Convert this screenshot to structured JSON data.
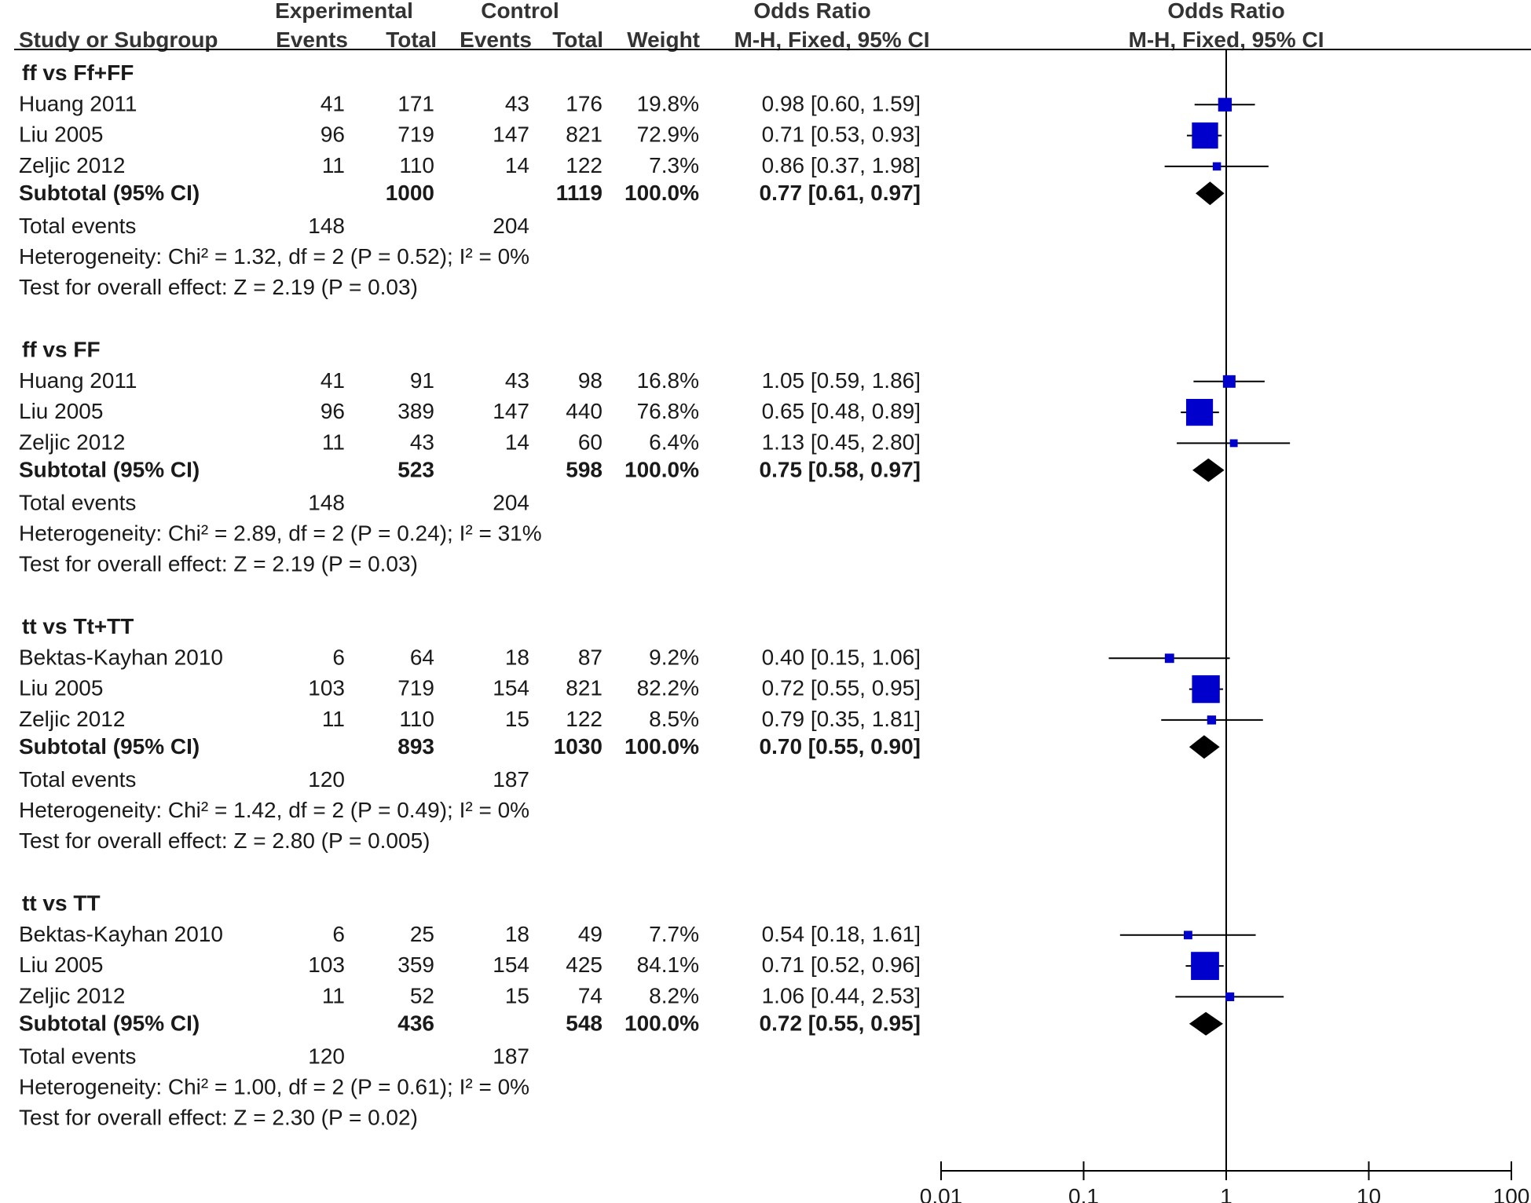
{
  "header": {
    "group_exp": "Experimental",
    "group_ctrl": "Control",
    "or_left_title": "Odds Ratio",
    "or_right_title": "Odds Ratio",
    "col_study": "Study or Subgroup",
    "col_exp_events": "Events",
    "col_exp_total": "Total",
    "col_ctrl_events": "Events",
    "col_ctrl_total": "Total",
    "col_weight": "Weight",
    "col_method_left": "M-H, Fixed, 95% CI",
    "col_method_right": "M-H, Fixed, 95% CI"
  },
  "subgroup_labels": {
    "subtotal": "Subtotal (95% CI)",
    "total_events": "Total events"
  },
  "chart_data": {
    "type": "forest",
    "x_scale": "log",
    "x_ticks": [
      0.01,
      0.1,
      1,
      10,
      100
    ],
    "x_tick_labels": [
      "0.01",
      "0.1",
      "1",
      "10",
      "100"
    ],
    "xlim": [
      0.01,
      100
    ],
    "reference_line": 1,
    "colors": {
      "study_box": "#0000cc",
      "summary_diamond": "#000000",
      "lines": "#000000"
    },
    "subgroups": [
      {
        "name": "ff vs Ff+FF",
        "studies": [
          {
            "study": "Huang 2011",
            "exp_events": "41",
            "exp_total": "171",
            "ctrl_events": "43",
            "ctrl_total": "176",
            "weight": "19.8%",
            "ci_text": "0.98 [0.60, 1.59]",
            "or": 0.98,
            "lo": 0.6,
            "hi": 1.59
          },
          {
            "study": "Liu 2005",
            "exp_events": "96",
            "exp_total": "719",
            "ctrl_events": "147",
            "ctrl_total": "821",
            "weight": "72.9%",
            "ci_text": "0.71 [0.53, 0.93]",
            "or": 0.71,
            "lo": 0.53,
            "hi": 0.93
          },
          {
            "study": "Zeljic 2012",
            "exp_events": "11",
            "exp_total": "110",
            "ctrl_events": "14",
            "ctrl_total": "122",
            "weight": "7.3%",
            "ci_text": "0.86 [0.37, 1.98]",
            "or": 0.86,
            "lo": 0.37,
            "hi": 1.98
          }
        ],
        "subtotal": {
          "exp_total": "1000",
          "ctrl_total": "1119",
          "weight": "100.0%",
          "ci_text": "0.77 [0.61, 0.97]",
          "or": 0.77,
          "lo": 0.61,
          "hi": 0.97
        },
        "total_events": {
          "exp": "148",
          "ctrl": "204"
        },
        "heterogeneity": "Heterogeneity: Chi² = 1.32, df = 2 (P = 0.52); I² = 0%",
        "overall": "Test for overall effect: Z = 2.19 (P = 0.03)"
      },
      {
        "name": "ff vs FF",
        "studies": [
          {
            "study": "Huang 2011",
            "exp_events": "41",
            "exp_total": "91",
            "ctrl_events": "43",
            "ctrl_total": "98",
            "weight": "16.8%",
            "ci_text": "1.05 [0.59, 1.86]",
            "or": 1.05,
            "lo": 0.59,
            "hi": 1.86
          },
          {
            "study": "Liu 2005",
            "exp_events": "96",
            "exp_total": "389",
            "ctrl_events": "147",
            "ctrl_total": "440",
            "weight": "76.8%",
            "ci_text": "0.65 [0.48, 0.89]",
            "or": 0.65,
            "lo": 0.48,
            "hi": 0.89
          },
          {
            "study": "Zeljic 2012",
            "exp_events": "11",
            "exp_total": "43",
            "ctrl_events": "14",
            "ctrl_total": "60",
            "weight": "6.4%",
            "ci_text": "1.13 [0.45, 2.80]",
            "or": 1.13,
            "lo": 0.45,
            "hi": 2.8
          }
        ],
        "subtotal": {
          "exp_total": "523",
          "ctrl_total": "598",
          "weight": "100.0%",
          "ci_text": "0.75 [0.58, 0.97]",
          "or": 0.75,
          "lo": 0.58,
          "hi": 0.97
        },
        "total_events": {
          "exp": "148",
          "ctrl": "204"
        },
        "heterogeneity": "Heterogeneity: Chi² = 2.89, df = 2 (P = 0.24); I² = 31%",
        "overall": "Test for overall effect: Z = 2.19 (P = 0.03)"
      },
      {
        "name": "tt vs Tt+TT",
        "studies": [
          {
            "study": "Bektas-Kayhan 2010",
            "exp_events": "6",
            "exp_total": "64",
            "ctrl_events": "18",
            "ctrl_total": "87",
            "weight": "9.2%",
            "ci_text": "0.40 [0.15, 1.06]",
            "or": 0.4,
            "lo": 0.15,
            "hi": 1.06
          },
          {
            "study": "Liu 2005",
            "exp_events": "103",
            "exp_total": "719",
            "ctrl_events": "154",
            "ctrl_total": "821",
            "weight": "82.2%",
            "ci_text": "0.72 [0.55, 0.95]",
            "or": 0.72,
            "lo": 0.55,
            "hi": 0.95
          },
          {
            "study": "Zeljic 2012",
            "exp_events": "11",
            "exp_total": "110",
            "ctrl_events": "15",
            "ctrl_total": "122",
            "weight": "8.5%",
            "ci_text": "0.79 [0.35, 1.81]",
            "or": 0.79,
            "lo": 0.35,
            "hi": 1.81
          }
        ],
        "subtotal": {
          "exp_total": "893",
          "ctrl_total": "1030",
          "weight": "100.0%",
          "ci_text": "0.70 [0.55, 0.90]",
          "or": 0.7,
          "lo": 0.55,
          "hi": 0.9
        },
        "total_events": {
          "exp": "120",
          "ctrl": "187"
        },
        "heterogeneity": "Heterogeneity: Chi² = 1.42, df = 2 (P = 0.49); I² = 0%",
        "overall": "Test for overall effect: Z = 2.80 (P = 0.005)"
      },
      {
        "name": "tt vs TT",
        "studies": [
          {
            "study": "Bektas-Kayhan 2010",
            "exp_events": "6",
            "exp_total": "25",
            "ctrl_events": "18",
            "ctrl_total": "49",
            "weight": "7.7%",
            "ci_text": "0.54 [0.18, 1.61]",
            "or": 0.54,
            "lo": 0.18,
            "hi": 1.61
          },
          {
            "study": "Liu 2005",
            "exp_events": "103",
            "exp_total": "359",
            "ctrl_events": "154",
            "ctrl_total": "425",
            "weight": "84.1%",
            "ci_text": "0.71 [0.52, 0.96]",
            "or": 0.71,
            "lo": 0.52,
            "hi": 0.96
          },
          {
            "study": "Zeljic 2012",
            "exp_events": "11",
            "exp_total": "52",
            "ctrl_events": "15",
            "ctrl_total": "74",
            "weight": "8.2%",
            "ci_text": "1.06 [0.44, 2.53]",
            "or": 1.06,
            "lo": 0.44,
            "hi": 2.53
          }
        ],
        "subtotal": {
          "exp_total": "436",
          "ctrl_total": "548",
          "weight": "100.0%",
          "ci_text": "0.72 [0.55, 0.95]",
          "or": 0.72,
          "lo": 0.55,
          "hi": 0.95
        },
        "total_events": {
          "exp": "120",
          "ctrl": "187"
        },
        "heterogeneity": "Heterogeneity: Chi² = 1.00, df = 2 (P = 0.61); I² = 0%",
        "overall": "Test for overall effect: Z = 2.30 (P = 0.02)"
      }
    ]
  }
}
